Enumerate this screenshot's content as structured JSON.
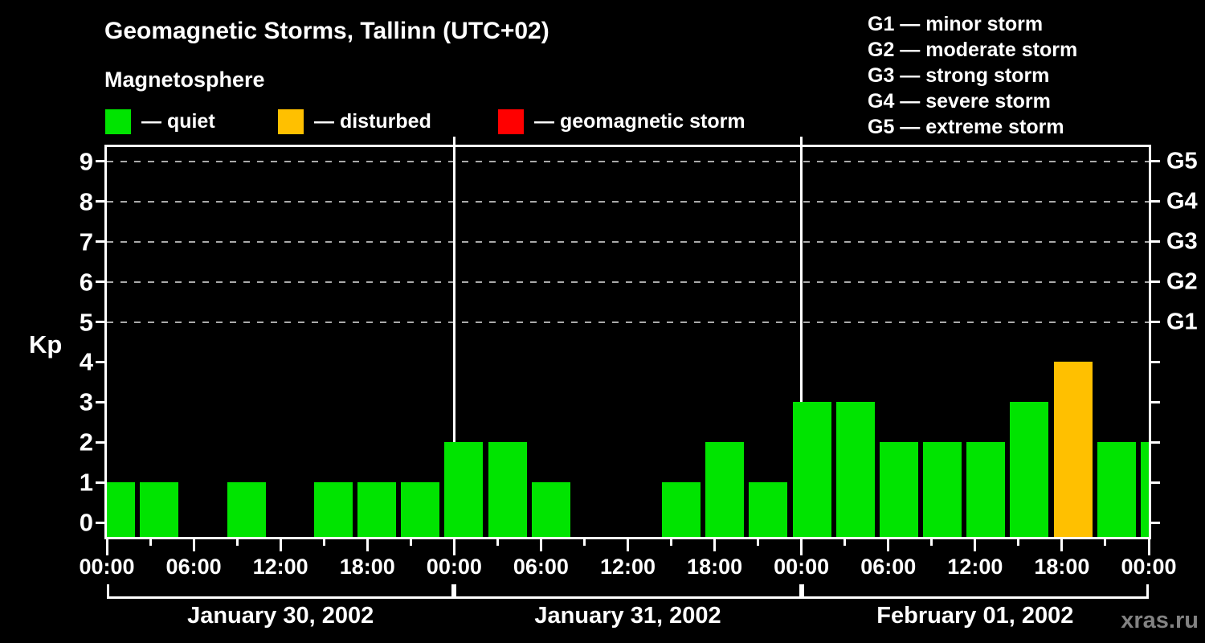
{
  "title": "Geomagnetic Storms, Tallinn (UTC+02)",
  "subtitle": "Magnetosphere",
  "watermark": "xras.ru",
  "colors": {
    "background": "#000000",
    "foreground": "#ffffff",
    "quiet": "#00E400",
    "disturbed": "#FFC000",
    "storm": "#FF0000",
    "grid": "#AAAAAA",
    "watermark": "#828282"
  },
  "legend": [
    {
      "key": "quiet",
      "label": "— quiet"
    },
    {
      "key": "disturbed",
      "label": "— disturbed"
    },
    {
      "key": "storm",
      "label": "— geomagnetic storm"
    }
  ],
  "g_scale_legend": [
    "G1 — minor storm",
    "G2 — moderate storm",
    "G3 — strong storm",
    "G4 — severe storm",
    "G5 — extreme storm"
  ],
  "y_axis": {
    "label": "Kp",
    "ticks": [
      0,
      1,
      2,
      3,
      4,
      5,
      6,
      7,
      8,
      9
    ]
  },
  "right_axis": [
    {
      "label": "G1",
      "value": 5
    },
    {
      "label": "G2",
      "value": 6
    },
    {
      "label": "G3",
      "value": 7
    },
    {
      "label": "G4",
      "value": 8
    },
    {
      "label": "G5",
      "value": 9
    }
  ],
  "x_axis": {
    "time_labels": [
      {
        "t": 0,
        "label": "00:00"
      },
      {
        "t": 6,
        "label": "06:00"
      },
      {
        "t": 12,
        "label": "12:00"
      },
      {
        "t": 18,
        "label": "18:00"
      },
      {
        "t": 24,
        "label": "00:00"
      },
      {
        "t": 30,
        "label": "06:00"
      },
      {
        "t": 36,
        "label": "12:00"
      },
      {
        "t": 42,
        "label": "18:00"
      },
      {
        "t": 48,
        "label": "00:00"
      },
      {
        "t": 54,
        "label": "06:00"
      },
      {
        "t": 60,
        "label": "12:00"
      },
      {
        "t": 66,
        "label": "18:00"
      },
      {
        "t": 72,
        "label": "00:00"
      }
    ]
  },
  "chart_data": {
    "type": "bar",
    "title": "Geomagnetic Storms, Tallinn (UTC+02)",
    "ylabel": "Kp",
    "ylim": [
      0,
      9.35
    ],
    "slot_hours": 3,
    "timezone": "UTC+02",
    "days": [
      {
        "date": "January 30, 2002",
        "kp": [
          1,
          1,
          0,
          1,
          0,
          1,
          1,
          1
        ]
      },
      {
        "date": "January 31, 2002",
        "kp": [
          2,
          2,
          1,
          0,
          0,
          1,
          2,
          1
        ]
      },
      {
        "date": "February 01, 2002",
        "kp": [
          3,
          3,
          2,
          2,
          2,
          3,
          4,
          2
        ]
      }
    ],
    "next_slot_kp": 2,
    "thresholds": {
      "quiet_max": 3,
      "disturbed": 4,
      "storm_min": 5
    },
    "gridlines_at": [
      5,
      6,
      7,
      8,
      9
    ],
    "day_boundaries_hours": [
      24,
      48
    ],
    "legend_position": "top",
    "grid": "dashed horizontal at G-levels only"
  }
}
